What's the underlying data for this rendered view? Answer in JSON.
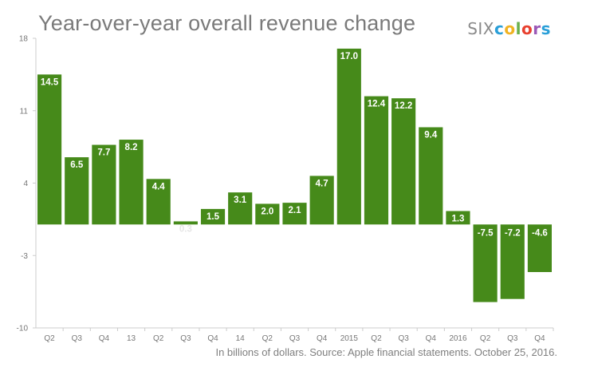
{
  "brand": {
    "text": "SIXcolors"
  },
  "chart_data": {
    "type": "bar",
    "title": "Year-over-year overall revenue change",
    "source": "In billions of dollars. Source: Apple financial statements. October 25, 2016.",
    "categories": [
      "Q2",
      "Q3",
      "Q4",
      "13",
      "Q2",
      "Q3",
      "Q4",
      "14",
      "Q2",
      "Q3",
      "Q4",
      "2015",
      "Q2",
      "Q3",
      "Q4",
      "2016",
      "Q2",
      "Q3",
      "Q4"
    ],
    "values": [
      14.5,
      6.5,
      7.7,
      8.2,
      4.4,
      0.3,
      1.5,
      3.1,
      2.0,
      2.1,
      4.7,
      17.0,
      12.4,
      12.2,
      9.4,
      1.3,
      -7.5,
      -7.2,
      -4.6
    ],
    "value_labels": [
      "14.5",
      "6.5",
      "7.7",
      "8.2",
      "4.4",
      "0.3",
      "1.5",
      "3.1",
      "2.0",
      "2.1",
      "4.7",
      "17.0",
      "12.4",
      "12.2",
      "9.4",
      "1.3",
      "-7.5",
      "-7.2",
      "-4.6"
    ],
    "yticks": [
      18,
      11,
      4,
      -3,
      -10
    ],
    "ylim": [
      -10,
      18
    ],
    "xlabel": "",
    "ylabel": "",
    "grid": false,
    "colors": {
      "bar": "#468a1a",
      "label": "#ffffff",
      "axis": "#cccccc"
    }
  }
}
